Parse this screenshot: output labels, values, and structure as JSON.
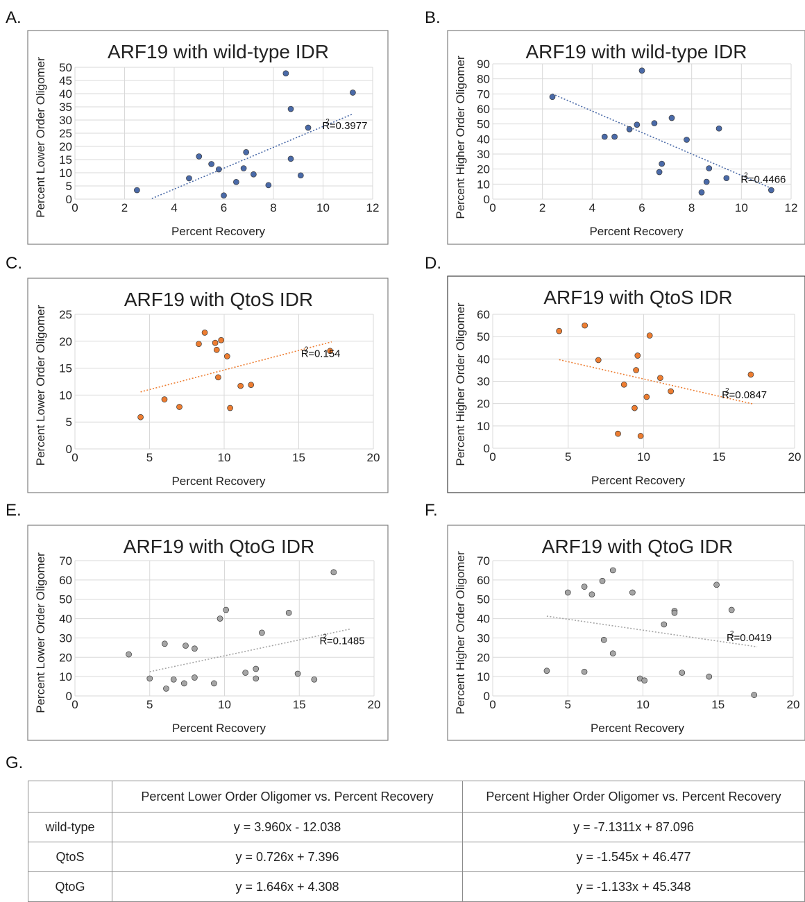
{
  "panels": {
    "A": "A.",
    "B": "B.",
    "C": "C.",
    "D": "D.",
    "E": "E.",
    "F": "F.",
    "G": "G."
  },
  "colors": {
    "wildtype": "#4a6aa8",
    "qtos": "#ed7d31",
    "qtog": "#a5a5a5"
  },
  "chart_data": [
    {
      "id": "A",
      "type": "scatter",
      "title": "ARF19 with wild-type IDR",
      "xlabel": "Percent Recovery",
      "ylabel": "Percent Lower Order Oligomer",
      "xlim": [
        0,
        12
      ],
      "ylim": [
        0,
        50
      ],
      "xticks": [
        0,
        2,
        4,
        6,
        8,
        10,
        12
      ],
      "yticks": [
        0,
        5,
        10,
        15,
        20,
        25,
        30,
        35,
        40,
        45,
        50
      ],
      "grid": true,
      "color_key": "wildtype",
      "r2_label": "=0.3977",
      "trendline": {
        "x": [
          3.1,
          11.2
        ]
      },
      "x": [
        2.5,
        4.6,
        5.0,
        5.5,
        5.8,
        6.0,
        6.5,
        6.8,
        6.9,
        7.2,
        7.8,
        8.5,
        8.7,
        8.7,
        9.1,
        9.4,
        11.2
      ],
      "y": [
        3.4,
        7.9,
        16.2,
        13.3,
        11.3,
        1.4,
        6.5,
        11.7,
        17.8,
        9.4,
        5.3,
        47.7,
        34.2,
        15.3,
        9.0,
        27.1,
        40.4
      ]
    },
    {
      "id": "B",
      "type": "scatter",
      "title": "ARF19 with wild-type IDR",
      "xlabel": "Percent Recovery",
      "ylabel": "Percent Higher Order Oligomer",
      "xlim": [
        0,
        12
      ],
      "ylim": [
        0,
        90
      ],
      "xticks": [
        0,
        2,
        4,
        6,
        8,
        10,
        12
      ],
      "yticks": [
        0,
        10,
        20,
        30,
        40,
        50,
        60,
        70,
        80,
        90
      ],
      "grid": true,
      "color_key": "wildtype",
      "r2_label": "=0.4466",
      "trendline": {
        "x": [
          2.4,
          11.2
        ]
      },
      "x": [
        2.4,
        4.5,
        4.9,
        5.5,
        5.8,
        6.0,
        6.5,
        6.7,
        6.8,
        7.2,
        7.8,
        8.4,
        8.6,
        8.7,
        9.1,
        9.4,
        11.2
      ],
      "y": [
        68,
        41.5,
        41.5,
        46.5,
        49.5,
        85.5,
        50.5,
        18,
        23.5,
        54,
        39.5,
        4.5,
        11.5,
        20.5,
        47,
        14,
        6
      ]
    },
    {
      "id": "C",
      "type": "scatter",
      "title": "ARF19 with QtoS IDR",
      "xlabel": "Percent Recovery",
      "ylabel": "Percent Lower Order Oligomer",
      "xlim": [
        0,
        20
      ],
      "ylim": [
        0,
        25
      ],
      "xticks": [
        0,
        5,
        10,
        15,
        20
      ],
      "yticks": [
        0,
        5,
        10,
        15,
        20,
        25
      ],
      "grid": true,
      "color_key": "qtos",
      "r2_label": "=0.154",
      "trendline": {
        "x": [
          4.4,
          17.2
        ]
      },
      "x": [
        4.4,
        6.0,
        7.0,
        8.3,
        8.7,
        9.4,
        9.5,
        9.6,
        9.8,
        10.2,
        10.4,
        11.1,
        11.8,
        17.1
      ],
      "y": [
        5.9,
        9.2,
        7.8,
        19.5,
        21.6,
        19.7,
        18.4,
        13.3,
        20.2,
        17.2,
        7.6,
        11.7,
        11.9,
        18.2
      ]
    },
    {
      "id": "D",
      "type": "scatter",
      "title": "ARF19 with QtoS IDR",
      "xlabel": "Percent Recovery",
      "ylabel": "Percent Higher Order Oligomer",
      "xlim": [
        0,
        20
      ],
      "ylim": [
        0,
        60
      ],
      "xticks": [
        0,
        5,
        10,
        15,
        20
      ],
      "yticks": [
        0,
        10,
        20,
        30,
        40,
        50,
        60
      ],
      "grid": true,
      "color_key": "qtos",
      "r2_label": "=0.0847",
      "trendline": {
        "x": [
          4.4,
          17.2
        ]
      },
      "x": [
        4.4,
        6.1,
        7.0,
        8.3,
        8.7,
        9.4,
        9.5,
        9.6,
        9.8,
        10.2,
        10.4,
        11.1,
        11.8,
        17.1
      ],
      "y": [
        52.5,
        55,
        39.5,
        6.5,
        28.5,
        18,
        35,
        41.5,
        5.5,
        23,
        50.5,
        31.5,
        25.5,
        33
      ]
    },
    {
      "id": "E",
      "type": "scatter",
      "title": "ARF19 with QtoG IDR",
      "xlabel": "Percent Recovery",
      "ylabel": "Percent Lower Order Oligomer",
      "xlim": [
        0,
        20
      ],
      "ylim": [
        0,
        70
      ],
      "xticks": [
        0,
        5,
        10,
        15,
        20
      ],
      "yticks": [
        0,
        10,
        20,
        30,
        40,
        50,
        60,
        70
      ],
      "grid": true,
      "color_key": "qtog",
      "r2_label": "=0.1485",
      "trendline": {
        "x": [
          5.0,
          18.4
        ]
      },
      "x": [
        3.6,
        5.0,
        6.0,
        6.1,
        6.6,
        7.3,
        7.4,
        8.0,
        8.0,
        9.3,
        9.7,
        10.1,
        11.4,
        12.1,
        12.1,
        12.5,
        14.3,
        14.9,
        16.0,
        17.3
      ],
      "y": [
        21.5,
        9,
        27,
        3.8,
        8.5,
        6.5,
        26,
        24.5,
        9.5,
        6.5,
        40,
        44.5,
        12,
        14,
        9,
        32.7,
        43,
        11.5,
        8.5,
        64
      ]
    },
    {
      "id": "F",
      "type": "scatter",
      "title": "ARF19 with QtoG IDR",
      "xlabel": "Percent Recovery",
      "ylabel": "Percent Higher Order Oligomer",
      "xlim": [
        0,
        20
      ],
      "ylim": [
        0,
        70
      ],
      "xticks": [
        0,
        5,
        10,
        15,
        20
      ],
      "yticks": [
        0,
        10,
        20,
        30,
        40,
        50,
        60,
        70
      ],
      "grid": true,
      "color_key": "qtog",
      "r2_label": "=0.0419",
      "trendline": {
        "x": [
          3.6,
          17.6
        ]
      },
      "x": [
        3.6,
        5.0,
        6.1,
        6.1,
        6.6,
        7.3,
        7.4,
        8.0,
        8.0,
        9.3,
        9.8,
        10.1,
        11.4,
        12.1,
        12.1,
        12.6,
        14.4,
        14.9,
        15.9,
        17.4
      ],
      "y": [
        13,
        53.5,
        56.5,
        12.5,
        52.5,
        59.5,
        29,
        65,
        22,
        53.5,
        9,
        8,
        37,
        44,
        43,
        12,
        10,
        57.5,
        44.5,
        0.5
      ]
    }
  ],
  "table": {
    "headers": [
      "",
      "Percent Lower Order Oligomer vs. Percent Recovery",
      "Percent Higher Order Oligomer vs. Percent Recovery"
    ],
    "rows": [
      [
        "wild-type",
        "y = 3.960x - 12.038",
        "y = -7.1311x + 87.096"
      ],
      [
        "QtoS",
        "y = 0.726x + 7.396",
        "y = -1.545x + 46.477"
      ],
      [
        "QtoG",
        "y = 1.646x + 4.308",
        "y = -1.133x + 45.348"
      ]
    ]
  }
}
